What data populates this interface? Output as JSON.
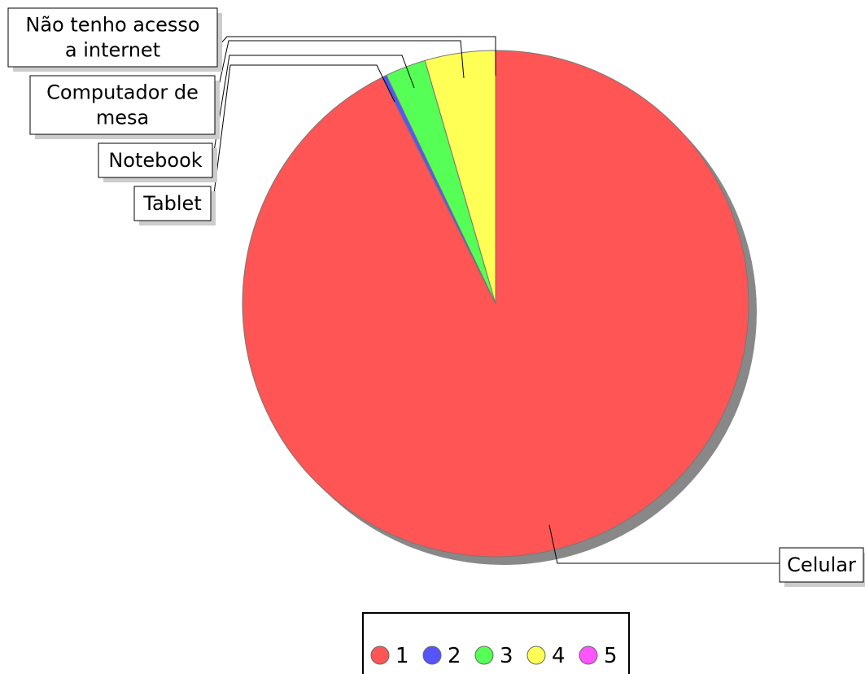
{
  "chart_data": {
    "type": "pie",
    "title": "",
    "slices": [
      {
        "label": "Celular",
        "legend": "1",
        "value": 92.6,
        "color": "#ff5555"
      },
      {
        "label": "Tablet",
        "legend": "2",
        "value": 0.3,
        "color": "#5555ff"
      },
      {
        "label": "Notebook",
        "legend": "3",
        "value": 2.6,
        "color": "#55ff55"
      },
      {
        "label": "Computador de mesa",
        "label_lines": [
          "Computador de",
          "mesa"
        ],
        "legend": "4",
        "value": 4.5,
        "color": "#ffff55"
      },
      {
        "label": "Não tenho acesso a internet",
        "label_lines": [
          "Não tenho acesso",
          "a internet"
        ],
        "legend": "5",
        "value": 0.0,
        "color": "#ff55ff"
      }
    ],
    "legend": {
      "placement": "bottom",
      "entries": [
        {
          "label": "1",
          "color": "#ff5555"
        },
        {
          "label": "2",
          "color": "#5555ff"
        },
        {
          "label": "3",
          "color": "#55ff55"
        },
        {
          "label": "4",
          "color": "#ffff55"
        },
        {
          "label": "5",
          "color": "#ff55ff"
        }
      ]
    }
  }
}
